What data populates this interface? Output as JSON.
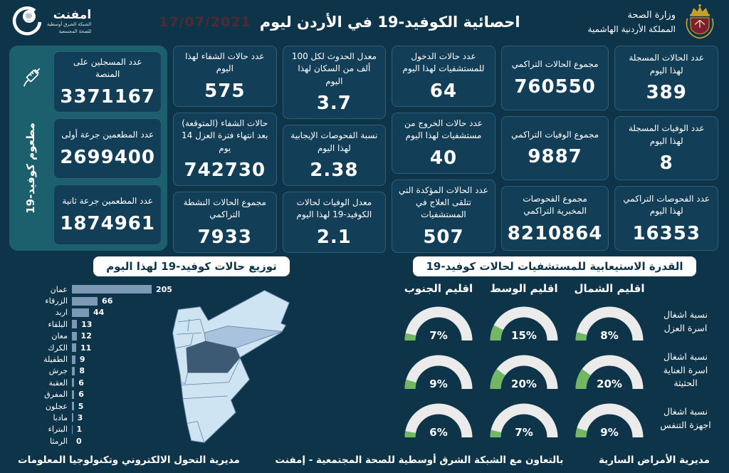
{
  "header": {
    "title": "احصائية الكوفيد-19 في الأردن ليوم",
    "date": "17/07/2021",
    "moh": {
      "line1": "وزارة الصحة",
      "line2": "المملكة الأردنية الهاشمية"
    },
    "emphnet": {
      "name": "امفنت",
      "sub1": "الشبكة الشرق أوسطية",
      "sub2": "للصحة المجتمعية"
    }
  },
  "stat_columns": [
    {
      "cards": [
        {
          "label": "عدد الحالات المسجلة لهذا اليوم",
          "value": "389"
        },
        {
          "label": "عدد الوفيات المسجلة لهذا اليوم",
          "value": "8"
        },
        {
          "label": "عدد الفحوصات التراكمي لهذا اليوم",
          "value": "16353"
        }
      ]
    },
    {
      "cards": [
        {
          "label": "مجموع الحالات التراكمي",
          "value": "760550"
        },
        {
          "label": "مجموع الوفيات التراكمي",
          "value": "9887"
        },
        {
          "label": "مجموع الفحوصات المخبرية التراكمي",
          "value": "8210864"
        }
      ]
    },
    {
      "cards": [
        {
          "label": "عدد حالات الدخول للمستشفيات لهذا اليوم",
          "value": "64"
        },
        {
          "label": "عدد حالات الخروج من مستشفيات لهذا اليوم",
          "value": "40"
        },
        {
          "label": "عدد الحالات المؤكدة التي تتلقى العلاج في المستشفيات",
          "value": "507"
        }
      ]
    },
    {
      "cards": [
        {
          "label": "معدل الحدوث لكل 100 ألف من السكان لهذا اليوم",
          "value": "3.7"
        },
        {
          "label": "نسبة الفحوصات الإيجابية لهذا اليوم",
          "value": "2.38"
        },
        {
          "label": "معدل الوفيات لحالات الكوفيد-19 لهذا اليوم",
          "value": "2.1"
        }
      ]
    },
    {
      "cards": [
        {
          "label": "عدد حالات الشفاء لهذا اليوم",
          "value": "575"
        },
        {
          "label": "حالات الشفاء (المتوقعة) بعد انتهاء فترة العزل 14 يوم",
          "value": "742730"
        },
        {
          "label": "مجموع الحالات النشطة التراكمي",
          "value": "7933"
        }
      ]
    }
  ],
  "vaccine_panel": {
    "side_label": "مطعوم كوفيد-19",
    "cards": [
      {
        "label": "عدد المسجلين على المنصة",
        "value": "3371167"
      },
      {
        "label": "عدد المطعمين جرعة أولى",
        "value": "2699400"
      },
      {
        "label": "عدد المطعمين جرعة ثانية",
        "value": "1874961"
      }
    ]
  },
  "chart_data": [
    {
      "type": "bar",
      "title": "توزيع حالات كوفيد-19 لهذا اليوم",
      "orientation": "horizontal",
      "categories": [
        "عمان",
        "الزرقاء",
        "اربد",
        "البلقاء",
        "معان",
        "الكرك",
        "الطفيلة",
        "جرش",
        "العقبة",
        "المفرق",
        "عجلون",
        "مادبا",
        "البتراء",
        "الرمثا"
      ],
      "values": [
        205,
        66,
        44,
        13,
        12,
        11,
        9,
        8,
        6,
        6,
        5,
        3,
        1,
        0
      ],
      "xlim": [
        0,
        205
      ],
      "bar_color": "#7d9ab4"
    },
    {
      "type": "gauge-grid",
      "title": "القدرة الاستيعابية للمستشفيات لحالات كوفيد-19",
      "columns": [
        "اقليم الشمال",
        "اقليم الوسط",
        "اقليم الجنوب"
      ],
      "rows": [
        "نسبة اشغال اسرة العزل",
        "نسبة اشغال اسرة العناية الحثيثة",
        "نسبة اشغال اجهزة التنفس"
      ],
      "values": [
        [
          8,
          15,
          7
        ],
        [
          20,
          20,
          9
        ],
        [
          9,
          7,
          6
        ]
      ],
      "unit": "%",
      "track_color": "#ebebeb",
      "fill_color": "#72b761"
    }
  ],
  "footer": {
    "right": "مديرية الأمراض السارية",
    "center": "بالتعاون مع الشبكة الشرق أوسطية للصحة المجتمعية - إمفنت",
    "left": "مديرية التحول الالكتروني وتكنولوجيا المعلومات"
  },
  "colors": {
    "background": "#0d3449",
    "card_bg": "#123e58",
    "card_border": "#2e5d7a",
    "vaccine_panel": "#1c5f6d",
    "banner_bg": "#ffffff",
    "banner_text": "#0d3449",
    "bar_color": "#7d9ab4",
    "gauge_track": "#ebebeb",
    "gauge_fill": "#72b761",
    "map_base": "#cfe4f3",
    "map_zarqa": "#a7c3dd",
    "map_amman": "#3d5a75",
    "date_color": "#4e2b33"
  }
}
